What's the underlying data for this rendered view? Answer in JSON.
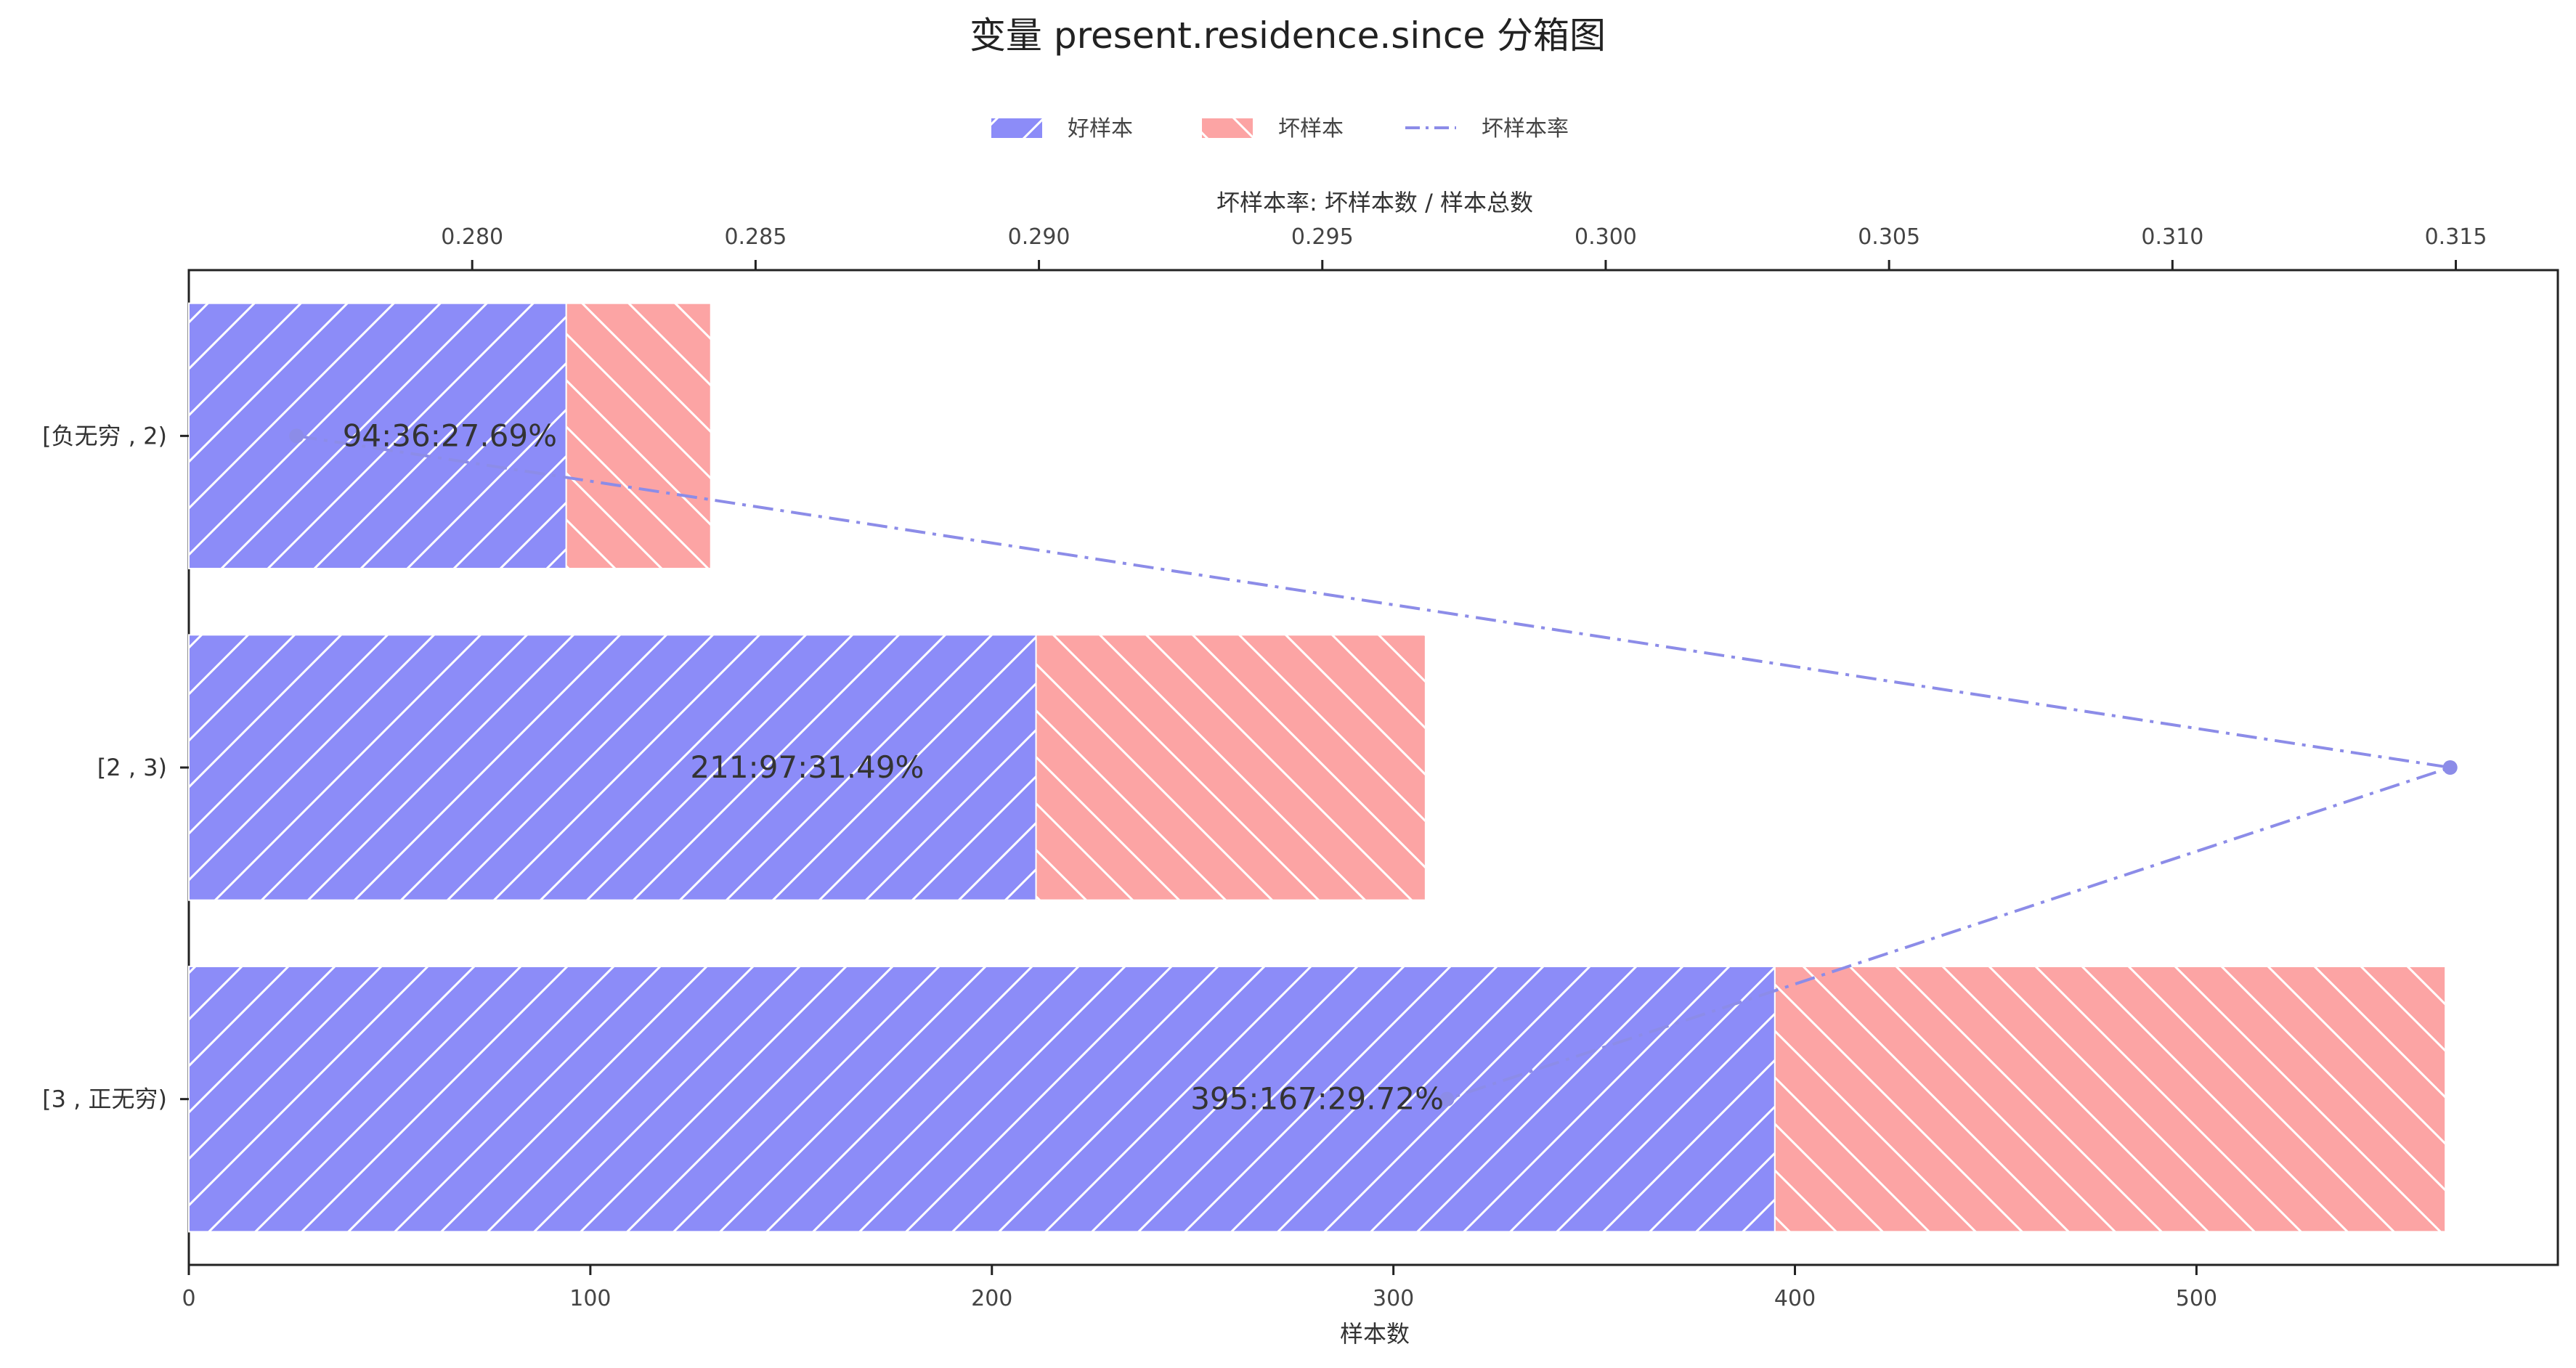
{
  "chart_data": {
    "type": "bar",
    "orientation": "horizontal",
    "stacked": true,
    "title": "变量 present.residence.since 分箱图",
    "xlabel": "样本数",
    "x2label": "坏样本率: 坏样本数 / 样本总数",
    "categories": [
      "[负无穷 , 2)",
      "[2 , 3)",
      "[3 , 正无穷)"
    ],
    "series": [
      {
        "name": "好样本",
        "values": [
          94,
          211,
          395
        ],
        "color": "#8c8cf8",
        "hatch": "/"
      },
      {
        "name": "坏样本",
        "values": [
          36,
          97,
          167
        ],
        "color": "#fca4a4",
        "hatch": "\\"
      }
    ],
    "rate_series": {
      "name": "坏样本率",
      "values": [
        0.2769,
        0.3149,
        0.2972
      ],
      "color": "#8c8ce8",
      "style": "dash-dot"
    },
    "data_labels": [
      "94:36:27.69%",
      "211:97:31.49%",
      "395:167:29.72%"
    ],
    "xlim": [
      0,
      590
    ],
    "xticks": [
      "0",
      "100",
      "200",
      "300",
      "400",
      "500"
    ],
    "x2lim": [
      0.275,
      0.3168
    ],
    "x2ticks": [
      "0.280",
      "0.285",
      "0.290",
      "0.295",
      "0.300",
      "0.305",
      "0.310",
      "0.315"
    ],
    "legend_position": "top-center"
  }
}
